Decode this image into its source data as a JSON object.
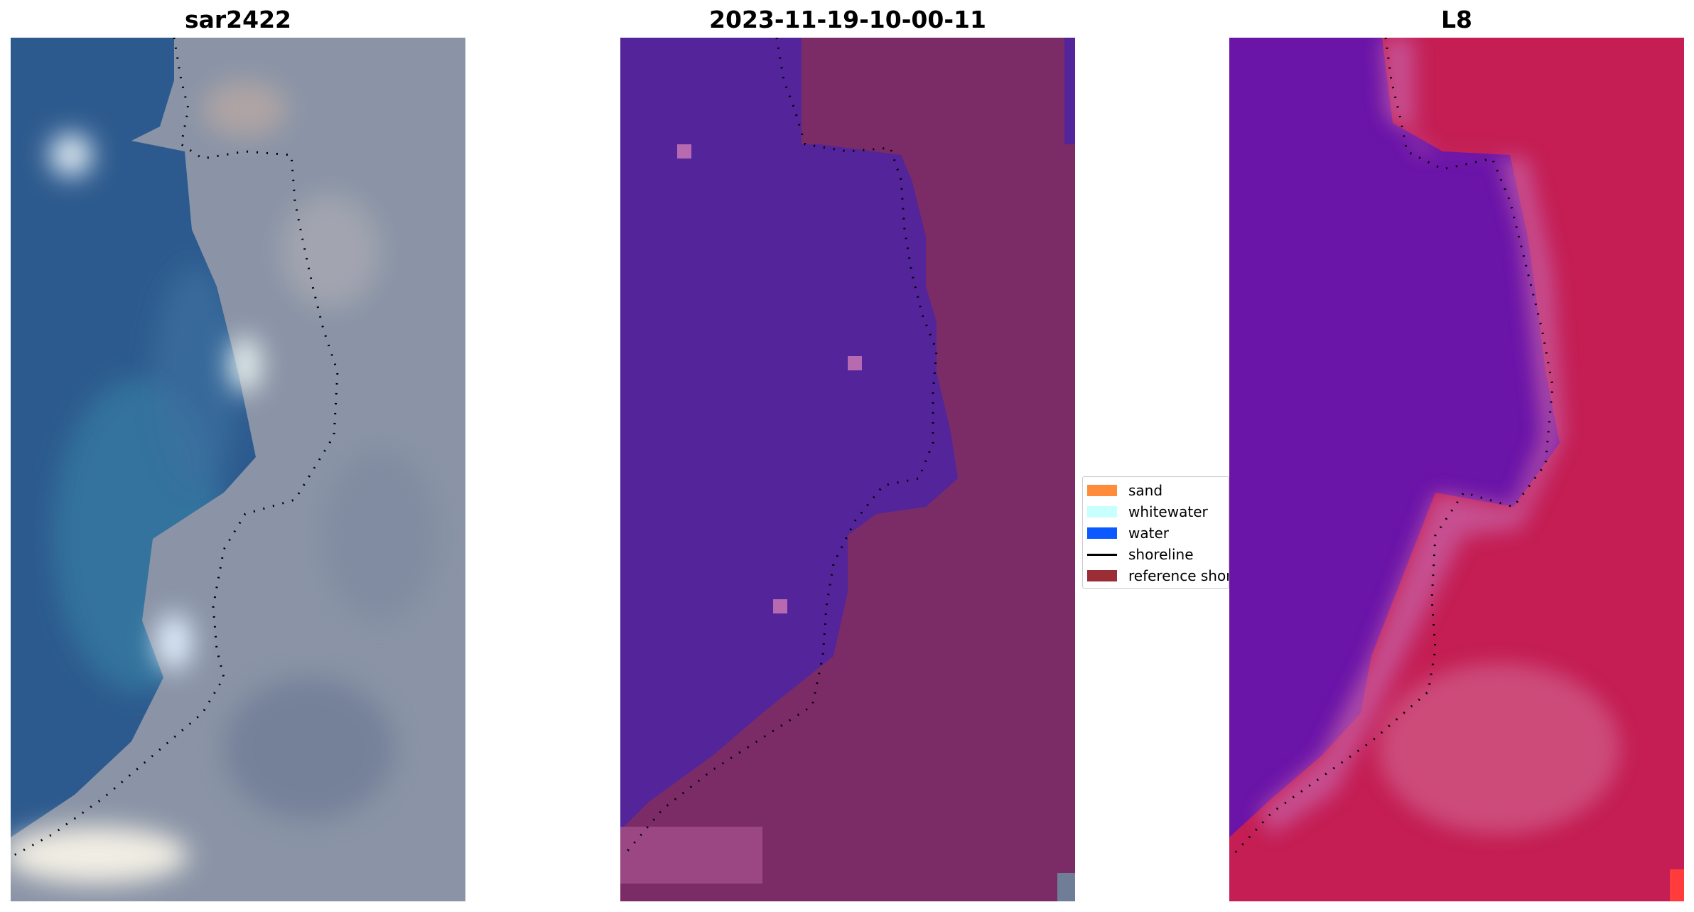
{
  "panels": [
    {
      "title": "sar2422"
    },
    {
      "title": "2023-11-19-10-00-11"
    },
    {
      "title": "L8"
    }
  ],
  "legend": {
    "items": [
      {
        "label": "sand",
        "color": "#ff8c3a",
        "type": "patch"
      },
      {
        "label": "whitewater",
        "color": "#c8ffff",
        "type": "patch"
      },
      {
        "label": "water",
        "color": "#0a5aff",
        "type": "patch"
      },
      {
        "label": "shoreline",
        "color": "#000000",
        "type": "line"
      },
      {
        "label": "reference shoreline",
        "color": "#9b2d36",
        "type": "patch"
      }
    ]
  },
  "colors": {
    "rgb_water": "#2e5a8f",
    "rgb_land": "#8c96a8",
    "classified_water": "#55239a",
    "classified_land": "#7a2a64",
    "l8_water": "#6a12a8",
    "l8_land": "#c81e52"
  }
}
